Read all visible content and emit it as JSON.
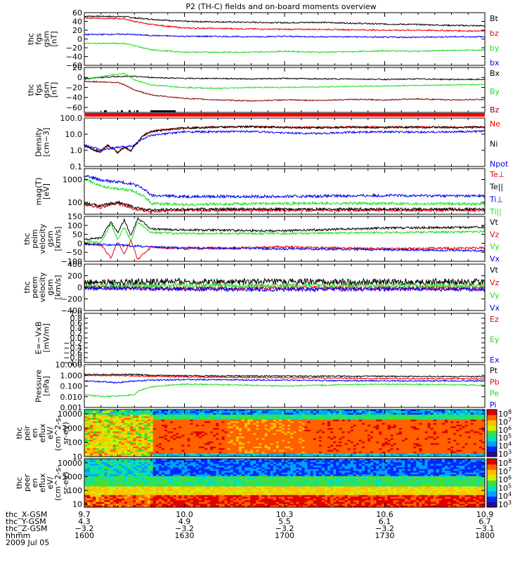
{
  "title": "P2 (TH-C) fields and on-board moments overview",
  "colors": {
    "black": "#000000",
    "red": "#ee0000",
    "darkred": "#8b0000",
    "green": "#22dd22",
    "blue": "#0000ee"
  },
  "chart_data": [
    {
      "type": "line",
      "id": "fgs_gsm",
      "ylabel": [
        "thc",
        "fgs",
        "gsm",
        "[nT]"
      ],
      "ylim": [
        -60,
        60
      ],
      "yticks": [
        "60",
        "40",
        "20",
        "0",
        "−20",
        "−40",
        "−60"
      ],
      "yticks_values": [
        60,
        40,
        20,
        0,
        -20,
        -40,
        -60
      ],
      "series": [
        {
          "name": "Bt",
          "color": "black",
          "x": [
            1600,
            1612,
            1615,
            1620,
            1630,
            1640,
            1650,
            1700,
            1710,
            1720,
            1730,
            1740,
            1750,
            1800
          ],
          "y": [
            52,
            51,
            48,
            45,
            40,
            39,
            38,
            37,
            38,
            36,
            34,
            33,
            31,
            30
          ]
        },
        {
          "name": "bz",
          "color": "red",
          "x": [
            1600,
            1612,
            1615,
            1620,
            1630,
            1640,
            1650,
            1700,
            1710,
            1720,
            1730,
            1740,
            1750,
            1800
          ],
          "y": [
            48,
            46,
            40,
            33,
            25,
            24,
            23,
            22,
            22,
            21,
            20,
            20,
            19,
            18
          ]
        },
        {
          "name": "by",
          "color": "green",
          "x": [
            1600,
            1612,
            1615,
            1620,
            1630,
            1640,
            1650,
            1700,
            1710,
            1720,
            1730,
            1740,
            1750,
            1800
          ],
          "y": [
            -10,
            -10,
            -15,
            -25,
            -30,
            -30,
            -30,
            -28,
            -30,
            -29,
            -27,
            -28,
            -26,
            -25
          ]
        },
        {
          "name": "bx",
          "color": "blue",
          "x": [
            1600,
            1612,
            1615,
            1620,
            1630,
            1640,
            1650,
            1700,
            1710,
            1720,
            1730,
            1740,
            1750,
            1800
          ],
          "y": [
            10,
            11,
            10,
            8,
            6,
            6,
            5,
            6,
            5,
            5,
            4,
            4,
            5,
            5
          ]
        }
      ]
    },
    {
      "type": "line",
      "id": "fgs_gsm2",
      "ylabel": [
        "thc",
        "fgs",
        "gsm",
        "[nT]"
      ],
      "ylim": [
        -70,
        20
      ],
      "yticks": [
        "20",
        "0",
        "−20",
        "−40",
        "−60"
      ],
      "yticks_values": [
        20,
        0,
        -20,
        -40,
        -60
      ],
      "series": [
        {
          "name": "Bx",
          "color": "black",
          "x": [
            1600,
            1610,
            1615,
            1620,
            1630,
            1640,
            1650,
            1700,
            1710,
            1720,
            1730,
            1740,
            1750,
            1800
          ],
          "y": [
            -2,
            2,
            2,
            0,
            -2,
            -2,
            -3,
            -2,
            -3,
            -3,
            -4,
            -3,
            -4,
            -4
          ]
        },
        {
          "name": "By",
          "color": "green",
          "x": [
            1600,
            1608,
            1612,
            1615,
            1620,
            1630,
            1640,
            1650,
            1700,
            1710,
            1720,
            1730,
            1740,
            1750,
            1800
          ],
          "y": [
            -5,
            5,
            8,
            -5,
            -15,
            -20,
            -22,
            -20,
            -20,
            -19,
            -18,
            -17,
            -16,
            -15,
            -14
          ]
        },
        {
          "name": "Bz",
          "color": "darkred",
          "x": [
            1600,
            1610,
            1612,
            1615,
            1620,
            1630,
            1640,
            1650,
            1700,
            1710,
            1720,
            1730,
            1740,
            1750,
            1800
          ],
          "y": [
            -8,
            -10,
            -15,
            -25,
            -35,
            -42,
            -45,
            -47,
            -45,
            -46,
            -44,
            -45,
            -43,
            -45,
            -44
          ]
        }
      ]
    },
    {
      "type": "line",
      "id": "density",
      "ylabel": [
        "Density",
        "[cm−3]"
      ],
      "scale": "log",
      "ylim": [
        0.1,
        100
      ],
      "yticks": [
        "100.0",
        "10.0",
        "1.0",
        "0.1"
      ],
      "yticks_values": [
        100,
        10,
        1,
        0.1
      ],
      "series": [
        {
          "name": "Ne",
          "color": "red",
          "x": [
            1600,
            1603,
            1605,
            1607,
            1610,
            1612,
            1614,
            1616,
            1620,
            1630,
            1640,
            1650,
            1700,
            1710,
            1720,
            1730,
            1740,
            1750,
            1800
          ],
          "y": [
            2,
            1,
            0.8,
            2,
            0.7,
            1.5,
            0.9,
            3,
            15,
            25,
            28,
            30,
            27,
            26,
            28,
            27,
            28,
            27,
            28
          ]
        },
        {
          "name": "Ni",
          "color": "black",
          "x": [
            1600,
            1603,
            1605,
            1607,
            1610,
            1612,
            1614,
            1616,
            1620,
            1630,
            1640,
            1650,
            1700,
            1710,
            1720,
            1730,
            1740,
            1750,
            1800
          ],
          "y": [
            2,
            1,
            0.8,
            2,
            0.7,
            1.5,
            0.9,
            3,
            14,
            24,
            27,
            29,
            26,
            25,
            27,
            26,
            27,
            26,
            27
          ]
        },
        {
          "name": "Npot",
          "color": "blue",
          "x": [
            1600,
            1605,
            1610,
            1615,
            1620,
            1630,
            1640,
            1650,
            1700,
            1710,
            1720,
            1730,
            1740,
            1750,
            1800
          ],
          "y": [
            2,
            1,
            1.5,
            2,
            8,
            14,
            14,
            15,
            12,
            11,
            13,
            14,
            13,
            14,
            15
          ]
        }
      ]
    },
    {
      "type": "line",
      "id": "temperature",
      "ylabel": [
        "mag(T)",
        "[eV]"
      ],
      "scale": "log",
      "ylim": [
        30,
        3000
      ],
      "yticks": [
        "1000",
        "100"
      ],
      "yticks_values": [
        1000,
        100
      ],
      "series": [
        {
          "name": "Te⊥",
          "color": "red",
          "x": [
            1600,
            1605,
            1610,
            1615,
            1620,
            1630,
            1700,
            1730,
            1800
          ],
          "y": [
            80,
            60,
            90,
            50,
            40,
            45,
            45,
            45,
            45
          ]
        },
        {
          "name": "Te||",
          "color": "black",
          "x": [
            1600,
            1605,
            1610,
            1615,
            1620,
            1630,
            1700,
            1730,
            1800
          ],
          "y": [
            90,
            70,
            100,
            60,
            45,
            50,
            50,
            50,
            50
          ]
        },
        {
          "name": "Ti⊥",
          "color": "blue",
          "x": [
            1600,
            1605,
            1610,
            1615,
            1620,
            1630,
            1700,
            1730,
            1800
          ],
          "y": [
            1500,
            900,
            800,
            600,
            200,
            180,
            180,
            200,
            190
          ]
        },
        {
          "name": "Ti||",
          "color": "green",
          "x": [
            1600,
            1605,
            1610,
            1615,
            1620,
            1630,
            1700,
            1730,
            1800
          ],
          "y": [
            1000,
            500,
            400,
            300,
            90,
            80,
            90,
            90,
            85
          ]
        }
      ]
    },
    {
      "type": "line",
      "id": "velocity_peim",
      "ylabel": [
        "thc",
        "peim",
        "velocity",
        "gsm",
        "[km/s]"
      ],
      "ylim": [
        -100,
        150
      ],
      "yticks": [
        "150",
        "100",
        "50",
        "0",
        "−50",
        "−100"
      ],
      "yticks_values": [
        150,
        100,
        50,
        0,
        -50,
        -100
      ],
      "series": [
        {
          "name": "Vt",
          "color": "black",
          "x": [
            1600,
            1605,
            1608,
            1610,
            1612,
            1614,
            1616,
            1620,
            1630,
            1700,
            1730,
            1800
          ],
          "y": [
            20,
            30,
            120,
            60,
            130,
            40,
            140,
            80,
            75,
            70,
            85,
            90
          ]
        },
        {
          "name": "Vz",
          "color": "red",
          "x": [
            1600,
            1605,
            1608,
            1610,
            1612,
            1614,
            1616,
            1620,
            1630,
            1700,
            1730,
            1800
          ],
          "y": [
            0,
            -10,
            -80,
            10,
            -60,
            20,
            -90,
            -20,
            -30,
            -20,
            -30,
            -25
          ]
        },
        {
          "name": "Vy",
          "color": "green",
          "x": [
            1600,
            1605,
            1608,
            1610,
            1612,
            1614,
            1616,
            1620,
            1630,
            1700,
            1730,
            1800
          ],
          "y": [
            10,
            5,
            110,
            20,
            90,
            10,
            120,
            60,
            55,
            55,
            60,
            65
          ]
        },
        {
          "name": "Vx",
          "color": "blue",
          "x": [
            1600,
            1610,
            1620,
            1630,
            1700,
            1730,
            1800
          ],
          "y": [
            -5,
            -10,
            -20,
            -25,
            -30,
            -35,
            -40
          ]
        }
      ]
    },
    {
      "type": "line",
      "id": "velocity_peem",
      "ylabel": [
        "thc",
        "peem",
        "velocity",
        "gsm",
        "[km/s]"
      ],
      "ylim": [
        -400,
        400
      ],
      "yticks": [
        "400",
        "200",
        "0",
        "−200",
        "−400"
      ],
      "yticks_values": [
        400,
        200,
        0,
        -200,
        -400
      ],
      "series": [
        {
          "name": "Vt",
          "color": "black",
          "x": [
            1600,
            1630,
            1700,
            1730,
            1800
          ],
          "y": [
            80,
            100,
            90,
            90,
            95
          ]
        },
        {
          "name": "Vz",
          "color": "red",
          "x": [
            1600,
            1630,
            1700,
            1730,
            1800
          ],
          "y": [
            0,
            -20,
            -10,
            -15,
            -10
          ]
        },
        {
          "name": "Vy",
          "color": "green",
          "x": [
            1600,
            1630,
            1700,
            1730,
            1800
          ],
          "y": [
            20,
            40,
            30,
            35,
            30
          ]
        },
        {
          "name": "Vx",
          "color": "blue",
          "x": [
            1600,
            1630,
            1700,
            1730,
            1800
          ],
          "y": [
            -10,
            -30,
            -40,
            -30,
            -35
          ]
        }
      ]
    },
    {
      "type": "line",
      "id": "efield",
      "ylabel": [
        "E=−VxB",
        "[mV/m]"
      ],
      "ylim": [
        -1,
        1
      ],
      "yticks": [
        "1.0",
        "0.8",
        "0.6",
        "0.4",
        "0.2",
        "0.0",
        "−0.2",
        "−0.4",
        "−0.6",
        "−0.8",
        "−1.0"
      ],
      "yticks_values": [
        1,
        0.8,
        0.6,
        0.4,
        0.2,
        0,
        -0.2,
        -0.4,
        -0.6,
        -0.8,
        -1
      ],
      "series": [
        {
          "name": "Ez",
          "color": "red",
          "x": [],
          "y": []
        },
        {
          "name": "Ey",
          "color": "green",
          "x": [],
          "y": []
        },
        {
          "name": "Ex",
          "color": "blue",
          "x": [],
          "y": []
        }
      ]
    },
    {
      "type": "line",
      "id": "pressure",
      "ylabel": [
        "Pressure",
        "[nPa]"
      ],
      "scale": "log",
      "ylim": [
        0.001,
        10
      ],
      "yticks": [
        "10.000",
        "1.000",
        "0.100",
        "0.010",
        "0.001"
      ],
      "yticks_values": [
        10,
        1,
        0.1,
        0.01,
        0.001
      ],
      "series": [
        {
          "name": "Pt",
          "color": "black",
          "x": [
            1600,
            1615,
            1620,
            1630,
            1700,
            1730,
            1800
          ],
          "y": [
            1.2,
            1.2,
            1.0,
            0.9,
            0.85,
            0.8,
            0.75
          ]
        },
        {
          "name": "Pb",
          "color": "red",
          "x": [
            1600,
            1615,
            1620,
            1630,
            1700,
            1730,
            1800
          ],
          "y": [
            1.0,
            0.9,
            0.8,
            0.7,
            0.6,
            0.5,
            0.45
          ]
        },
        {
          "name": "Pe",
          "color": "green",
          "x": [
            1600,
            1605,
            1610,
            1615,
            1620,
            1630,
            1700,
            1730,
            1800
          ],
          "y": [
            0.015,
            0.01,
            0.012,
            0.015,
            0.08,
            0.15,
            0.1,
            0.15,
            0.12
          ]
        },
        {
          "name": "Pi",
          "color": "blue",
          "x": [
            1600,
            1605,
            1610,
            1615,
            1620,
            1630,
            1700,
            1730,
            1800
          ],
          "y": [
            0.3,
            0.25,
            0.2,
            0.3,
            0.35,
            0.4,
            0.35,
            0.3,
            0.3
          ]
        }
      ]
    },
    {
      "type": "heatmap",
      "id": "peir_eflux",
      "ylabel": [
        "thc",
        "peir",
        "en",
        "eflux",
        "eV/",
        "(cm^2-s-",
        "sr-eV)"
      ],
      "scale": "log",
      "ylim": [
        10,
        20000
      ],
      "yticks": [
        "10000",
        "1000",
        "100",
        "10"
      ],
      "yticks_values": [
        10000,
        1000,
        100,
        10
      ],
      "colorbar_ticks": [
        "10^8",
        "10^7",
        "10^6",
        "10^5",
        "10^4",
        "10^3"
      ]
    },
    {
      "type": "heatmap",
      "id": "peer_eflux",
      "ylabel": [
        "thc",
        "peer",
        "en",
        "eflux",
        "eV/",
        "(cm^2-s-",
        "sr-eV)"
      ],
      "scale": "log",
      "ylim": [
        6,
        20000
      ],
      "yticks": [
        "10000",
        "1000",
        "100",
        "10"
      ],
      "yticks_values": [
        10000,
        1000,
        100,
        10
      ],
      "colorbar_ticks": [
        "10^8",
        "10^7",
        "10^6",
        "10^5",
        "10^4",
        "10^3"
      ]
    }
  ],
  "xaxis": {
    "range": [
      1600,
      1800
    ],
    "ticks": [
      1600,
      1630,
      1700,
      1730,
      1800
    ],
    "row_labels": [
      "thc_X-GSM",
      "thc_Y-GSM",
      "thc_Z-GSM",
      "hhmm",
      "2009 Jul 05"
    ],
    "rows": [
      [
        "9.7",
        "10.0",
        "10.3",
        "10.6",
        "10.9"
      ],
      [
        "4.3",
        "4.9",
        "5.5",
        "6.1",
        "6.7"
      ],
      [
        "−3.2",
        "−3.2",
        "−3.2",
        "−3.2",
        "−3.1"
      ],
      [
        "1600",
        "1630",
        "1700",
        "1730",
        "1800"
      ]
    ]
  }
}
